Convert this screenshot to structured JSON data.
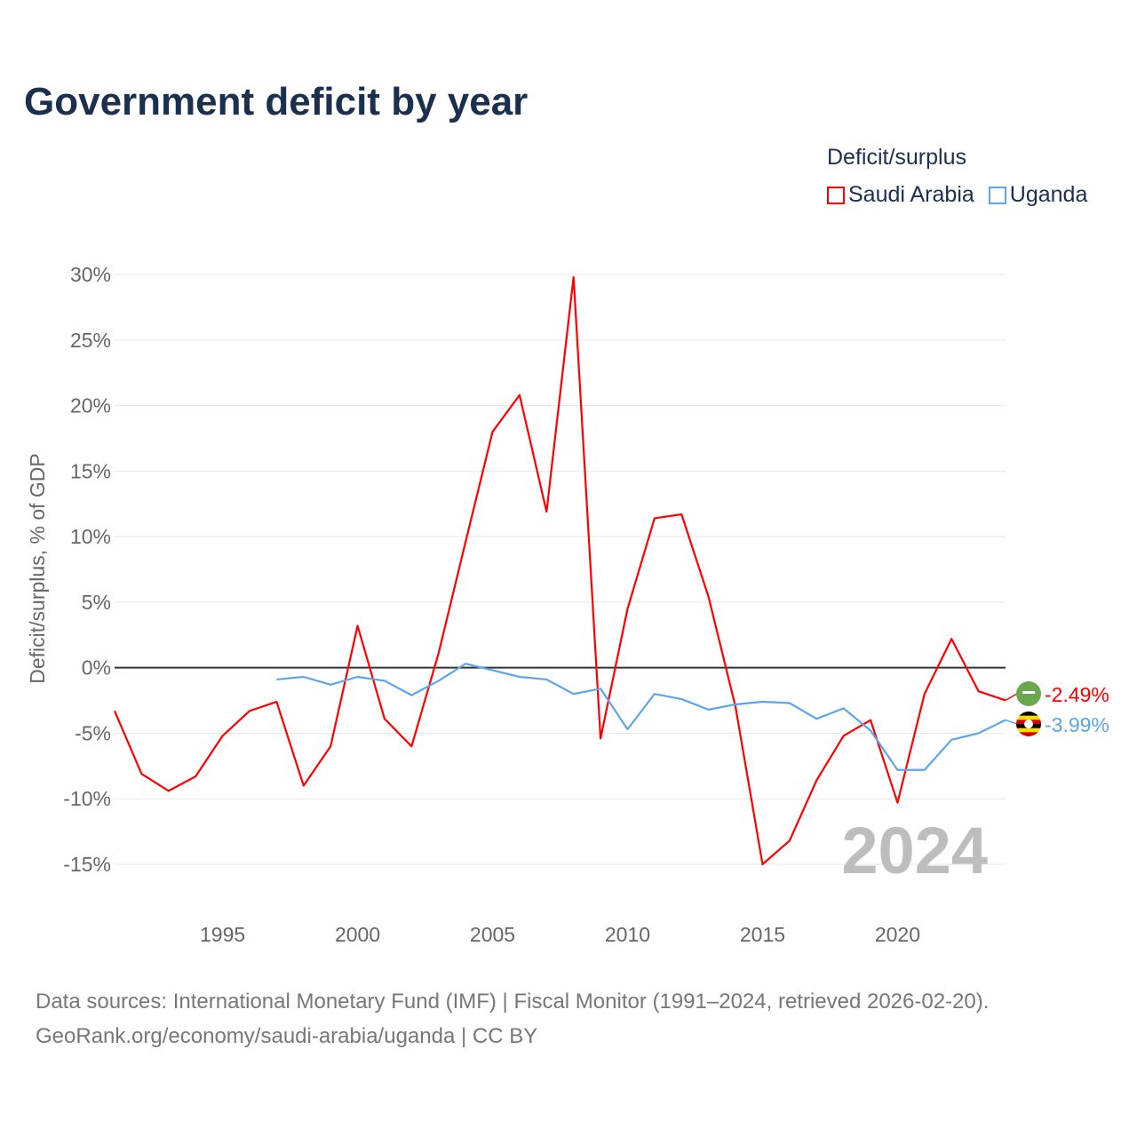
{
  "chart_data": {
    "type": "line",
    "title": "Government deficit by year",
    "ylabel": "Deficit/surplus, % of GDP",
    "xlabel": "",
    "ylim": [
      -15,
      30
    ],
    "xlim": [
      1991,
      2024
    ],
    "yticks": [
      30,
      25,
      20,
      15,
      10,
      5,
      0,
      -5,
      -10,
      -15
    ],
    "ytick_labels": [
      "30%",
      "25%",
      "20%",
      "15%",
      "10%",
      "5%",
      "0%",
      "-5%",
      "-10%",
      "-15%"
    ],
    "xticks": [
      1995,
      2000,
      2005,
      2010,
      2015,
      2020
    ],
    "xtick_labels": [
      "1995",
      "2000",
      "2005",
      "2010",
      "2015",
      "2020"
    ],
    "grid": true,
    "legend_title": "Deficit/surplus",
    "legend_position": "top-right",
    "year_label": "2024",
    "series": [
      {
        "name": "Saudi Arabia",
        "color": "#ff0000",
        "end_label": "-2.49%",
        "x": [
          1991,
          1992,
          1993,
          1994,
          1995,
          1996,
          1997,
          1998,
          1999,
          2000,
          2001,
          2002,
          2003,
          2004,
          2005,
          2006,
          2007,
          2008,
          2009,
          2010,
          2011,
          2012,
          2013,
          2014,
          2015,
          2016,
          2017,
          2018,
          2019,
          2020,
          2021,
          2022,
          2023,
          2024
        ],
        "values": [
          -3.3,
          -8.1,
          -9.4,
          -8.3,
          -5.2,
          -3.3,
          -2.6,
          -9.0,
          -6.0,
          3.2,
          -3.9,
          -6.0,
          1.1,
          9.6,
          18.0,
          20.8,
          11.9,
          29.8,
          -5.4,
          4.5,
          11.4,
          11.7,
          5.4,
          -3.0,
          -15.0,
          -13.2,
          -8.6,
          -5.2,
          -4.0,
          -10.3,
          -2.0,
          2.2,
          -1.8,
          -2.49
        ]
      },
      {
        "name": "Uganda",
        "color": "#5da5ea",
        "end_label": "-3.99%",
        "x": [
          1997,
          1998,
          1999,
          2000,
          2001,
          2002,
          2003,
          2004,
          2005,
          2006,
          2007,
          2008,
          2009,
          2010,
          2011,
          2012,
          2013,
          2014,
          2015,
          2016,
          2017,
          2018,
          2019,
          2020,
          2021,
          2022,
          2023,
          2024
        ],
        "values": [
          -0.9,
          -0.7,
          -1.3,
          -0.7,
          -1.0,
          -2.1,
          -1.0,
          0.3,
          -0.2,
          -0.7,
          -0.9,
          -2.0,
          -1.6,
          -4.7,
          -2.0,
          -2.4,
          -3.2,
          -2.8,
          -2.6,
          -2.7,
          -3.9,
          -3.1,
          -4.8,
          -7.8,
          -7.8,
          -5.5,
          -5.0,
          -3.99
        ]
      }
    ]
  },
  "footer": {
    "line1": "Data sources: International Monetary Fund (IMF) | Fiscal Monitor (1991–2024, retrieved 2026-02-20).",
    "line2": "GeoRank.org/economy/saudi-arabia/uganda | CC BY"
  }
}
